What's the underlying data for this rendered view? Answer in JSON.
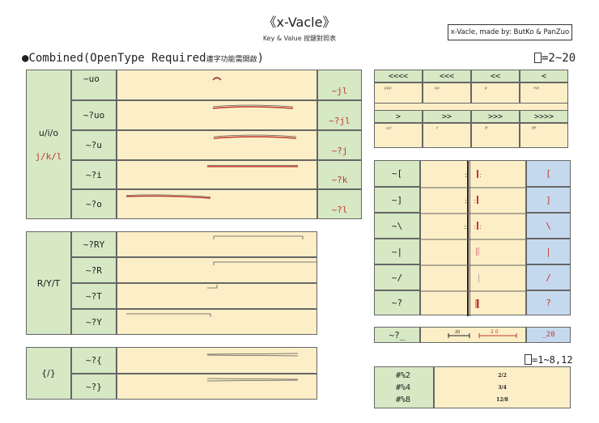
{
  "header": {
    "title": "《x-Vacle》",
    "subtitle": "Key & Value 按鍵對照表",
    "credit": "x-Vacle, made by: ButKo & PanZuo"
  },
  "heading": {
    "main": "Combined(OpenType Required",
    "note": "連字功能需開啟",
    "close": ")"
  },
  "q_note": "=2~20",
  "hash_note": "=1~8,12",
  "group1": {
    "label": "u/i/o",
    "label2": "j/k/l",
    "rows": [
      {
        "key": "~uo",
        "out": "~jl"
      },
      {
        "key": "~?uo",
        "out": "~?jl"
      },
      {
        "key": "~?u",
        "out": "~?j"
      },
      {
        "key": "~?i",
        "out": "~?k"
      },
      {
        "key": "~?o",
        "out": "~?l"
      }
    ]
  },
  "group2": {
    "label": "R/Y/T",
    "rows": [
      {
        "key": "~?RY"
      },
      {
        "key": "~?R"
      },
      {
        "key": "~?T"
      },
      {
        "key": "~?Y"
      }
    ]
  },
  "group3": {
    "label": "{/}",
    "rows": [
      {
        "key": "~?{"
      },
      {
        "key": "~?}"
      }
    ]
  },
  "dynamics": {
    "row1": [
      "<<<<",
      "<<<",
      "<<",
      "<"
    ],
    "vals1": [
      "ppp",
      "pp",
      "p",
      "mp"
    ],
    "row2": [
      ">",
      ">>",
      ">>>",
      ">>>>"
    ],
    "vals2": [
      "mf",
      "f",
      "ff",
      "fff"
    ]
  },
  "barlines": [
    {
      "key": "~[",
      "out": "["
    },
    {
      "key": "~]",
      "out": "]"
    },
    {
      "key": "~\\",
      "out": "\\"
    },
    {
      "key": "~|",
      "out": "|"
    },
    {
      "key": "~/",
      "out": "/"
    },
    {
      "key": "~?",
      "out": "?"
    }
  ],
  "measure": {
    "key": "~?_",
    "num1": "20",
    "num2": "2 0",
    "out": "_20"
  },
  "time_sigs": {
    "keys": [
      "#%2",
      "#%4",
      "#%8"
    ],
    "vals": [
      "2/2",
      "3/4",
      "12/8"
    ]
  }
}
